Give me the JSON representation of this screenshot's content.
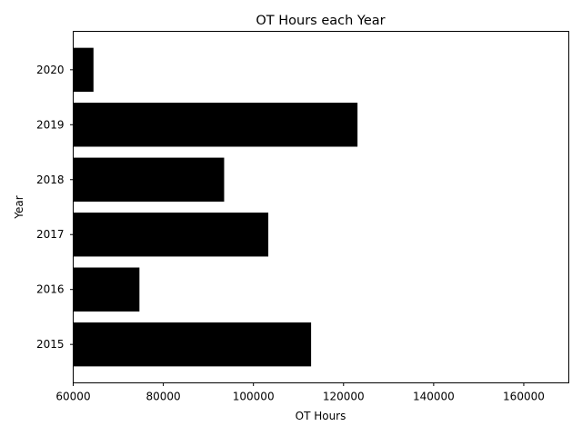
{
  "chart_data": {
    "type": "bar",
    "orientation": "horizontal",
    "title": "OT Hours each Year",
    "xlabel": "OT Hours",
    "ylabel": "Year",
    "categories": [
      "2015",
      "2016",
      "2017",
      "2018",
      "2019",
      "2020"
    ],
    "values": [
      112800,
      74700,
      103300,
      93500,
      123100,
      64500
    ],
    "xlim": [
      60000,
      170000
    ],
    "xticks": [
      60000,
      80000,
      100000,
      120000,
      140000,
      160000
    ],
    "bar_color": "#000000",
    "grid": false,
    "legend": "none"
  }
}
